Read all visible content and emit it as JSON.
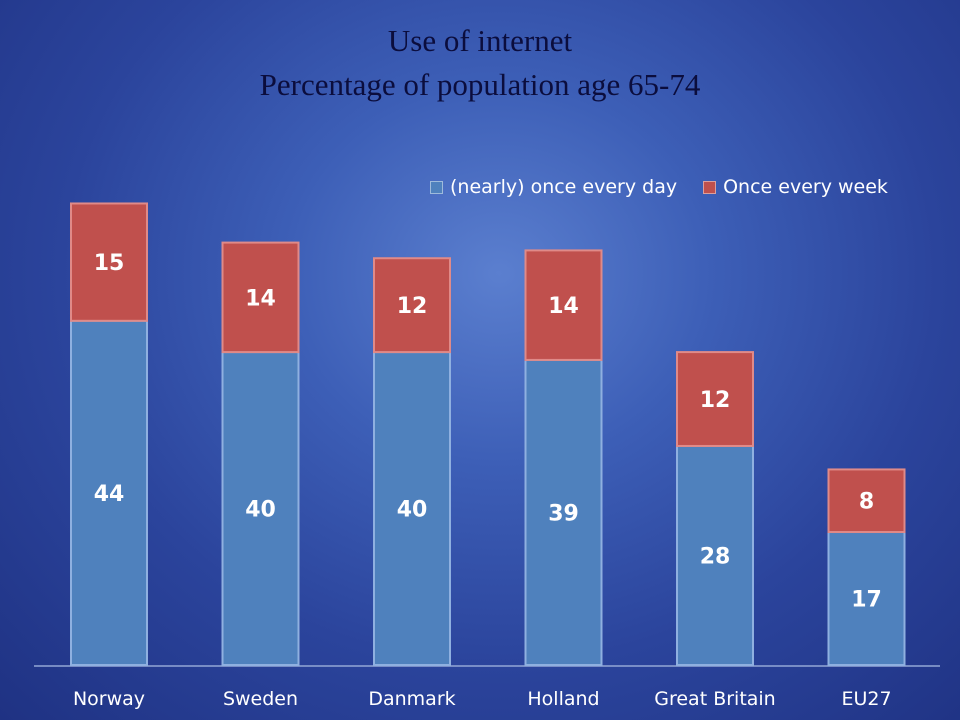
{
  "chart_data": {
    "type": "bar",
    "stacked": true,
    "title": "Use of internet",
    "subtitle": "Percentage of population age 65-74",
    "categories": [
      "Norway",
      "Sweden",
      "Danmark",
      "Holland",
      "Great Britain",
      "EU27"
    ],
    "series": [
      {
        "name": "(nearly) once every day",
        "values": [
          44,
          40,
          40,
          39,
          28,
          17
        ],
        "color": "#4f81bd"
      },
      {
        "name": "Once every week",
        "values": [
          15,
          14,
          12,
          14,
          12,
          8
        ],
        "color": "#c0504d"
      }
    ],
    "ylim": [
      0,
      62
    ],
    "grid": false,
    "legend_position": "top-right"
  }
}
